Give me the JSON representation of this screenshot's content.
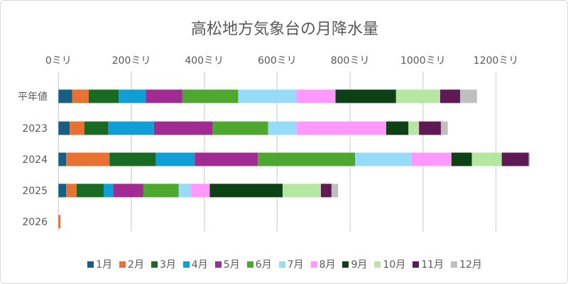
{
  "chart_data": {
    "type": "bar",
    "orientation": "horizontal",
    "stacked": true,
    "title": "高松地方気象台の月降水量",
    "categories": [
      "平年値",
      "2023",
      "2024",
      "2025",
      "2026"
    ],
    "xlim": [
      0,
      1300
    ],
    "xticks": [
      0,
      200,
      400,
      600,
      800,
      1000,
      1200
    ],
    "xtick_labels": [
      "0ミリ",
      "200ミリ",
      "400ミリ",
      "600ミリ",
      "800ミリ",
      "1000ミリ",
      "1200ミリ"
    ],
    "grid": true,
    "legend_position": "bottom",
    "series": [
      {
        "name": "1月",
        "color": "#156082",
        "values": [
          38,
          31,
          21,
          21,
          0.5
        ]
      },
      {
        "name": "2月",
        "color": "#E97132",
        "values": [
          45,
          40,
          119,
          29,
          5
        ]
      },
      {
        "name": "3月",
        "color": "#196B24",
        "values": [
          82,
          66,
          127,
          74,
          0
        ]
      },
      {
        "name": "4月",
        "color": "#0F9ED5",
        "values": [
          75,
          125,
          107,
          26,
          0
        ]
      },
      {
        "name": "5月",
        "color": "#A02B93",
        "values": [
          100,
          160,
          173,
          83,
          0
        ]
      },
      {
        "name": "6月",
        "color": "#4EA72E",
        "values": [
          153,
          153,
          267,
          97,
          0
        ]
      },
      {
        "name": "7月",
        "color": "#96DCF8",
        "values": [
          159,
          79,
          155,
          33,
          0
        ]
      },
      {
        "name": "8月",
        "color": "#FF99FF",
        "values": [
          108,
          245,
          109,
          52,
          0
        ]
      },
      {
        "name": "9月",
        "color": "#0E4016",
        "values": [
          166,
          61,
          56,
          200,
          0
        ]
      },
      {
        "name": "10月",
        "color": "#B5E6A2",
        "values": [
          121,
          29,
          82,
          105,
          0
        ]
      },
      {
        "name": "11月",
        "color": "#5F1A55",
        "values": [
          55,
          60,
          74,
          29,
          0
        ]
      },
      {
        "name": "12月",
        "color": "#BFBFBF",
        "values": [
          46,
          19,
          3,
          18,
          0
        ]
      }
    ]
  }
}
